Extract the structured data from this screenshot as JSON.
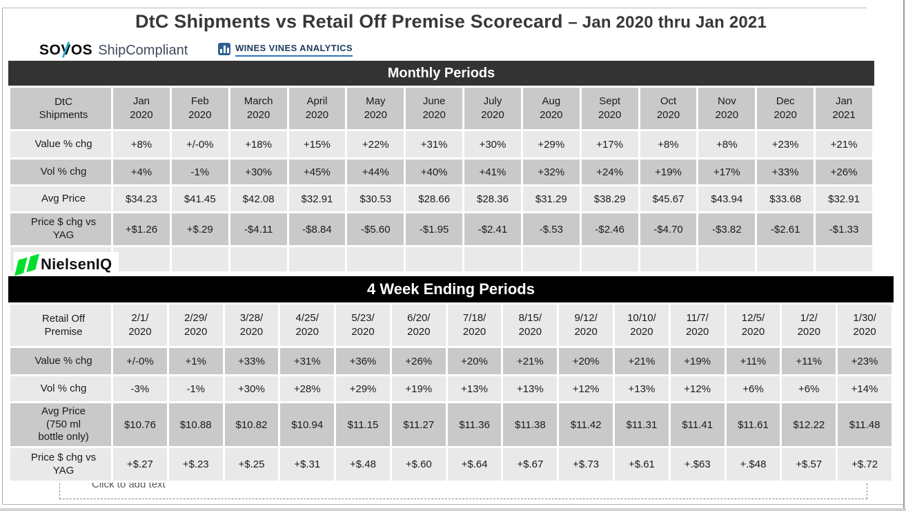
{
  "page": {
    "title_main": "DtC Shipments vs Retail Off Premise Scorecard",
    "title_range": "– Jan 2020 thru Jan 2021"
  },
  "logos": {
    "sovos": {
      "brand": "SOVOS",
      "product": "ShipCompliant",
      "accent": "#1fb3cb"
    },
    "wines_vines": {
      "text": "WINES VINES ANALYTICS",
      "color": "#1a3a5c",
      "icon_bg": "#2d5f91"
    },
    "nielsen": {
      "text": "NielsenIQ",
      "green": "#00df2e"
    }
  },
  "colors": {
    "cell_dark": "#c9c9c9",
    "cell_light": "#e9e9e9",
    "band1_bg": "#333333",
    "band2_bg": "#000000"
  },
  "sections": [
    {
      "band_label": "Monthly Periods",
      "header_shade": "dark",
      "table": {
        "corner_label": "DtC\nShipments",
        "columns": [
          "Jan\n2020",
          "Feb\n2020",
          "March\n2020",
          "April\n2020",
          "May\n2020",
          "June\n2020",
          "July\n2020",
          "Aug\n2020",
          "Sept\n2020",
          "Oct\n2020",
          "Nov\n2020",
          "Dec\n2020",
          "Jan\n2021"
        ],
        "rows": [
          {
            "label": "Value % chg",
            "values": [
              "+8%",
              "+/-0%",
              "+18%",
              "+15%",
              "+22%",
              "+31%",
              "+30%",
              "+29%",
              "+17%",
              "+8%",
              "+8%",
              "+23%",
              "+21%"
            ]
          },
          {
            "label": "Vol % chg",
            "values": [
              "+4%",
              "-1%",
              "+30%",
              "+45%",
              "+44%",
              "+40%",
              "+41%",
              "+32%",
              "+24%",
              "+19%",
              "+17%",
              "+33%",
              "+26%"
            ]
          },
          {
            "label": "Avg Price",
            "values": [
              "$34.23",
              "$41.45",
              "$42.08",
              "$32.91",
              "$30.53",
              "$28.66",
              "$28.36",
              "$31.29",
              "$38.29",
              "$45.67",
              "$43.94",
              "$33.68",
              "$32.91"
            ]
          },
          {
            "label": "Price $ chg vs\nYAG",
            "values": [
              "+$1.26",
              "+$.29",
              "-$4.11",
              "-$8.84",
              "-$5.60",
              "-$1.95",
              "-$2.41",
              "-$.53",
              "-$2.46",
              "-$4.70",
              "-$3.82",
              "-$2.61",
              "-$1.33"
            ]
          },
          {
            "label": "",
            "values": [
              "",
              "",
              "",
              "",
              "",
              "",
              "",
              "",
              "",
              "",
              "",
              "",
              ""
            ]
          }
        ]
      }
    },
    {
      "band_label": "4 Week Ending Periods",
      "header_shade": "light",
      "table": {
        "corner_label": "Retail Off\nPremise",
        "columns": [
          "2/1/\n2020",
          "2/29/\n2020",
          "3/28/\n2020",
          "4/25/\n2020",
          "5/23/\n2020",
          "6/20/\n2020",
          "7/18/\n2020",
          "8/15/\n2020",
          "9/12/\n2020",
          "10/10/\n2020",
          "11/7/\n2020",
          "12/5/\n2020",
          "1/2/\n2020",
          "1/30/\n2020"
        ],
        "rows": [
          {
            "label": "Value % chg",
            "values": [
              "+/-0%",
              "+1%",
              "+33%",
              "+31%",
              "+36%",
              "+26%",
              "+20%",
              "+21%",
              "+20%",
              "+21%",
              "+19%",
              "+11%",
              "+11%",
              "+23%"
            ]
          },
          {
            "label": "Vol % chg",
            "values": [
              "-3%",
              "-1%",
              "+30%",
              "+28%",
              "+29%",
              "+19%",
              "+13%",
              "+13%",
              "+12%",
              "+13%",
              "+12%",
              "+6%",
              "+6%",
              "+14%"
            ]
          },
          {
            "label": "Avg Price\n(750 ml\nbottle only)",
            "values": [
              "$10.76",
              "$10.88",
              "$10.82",
              "$10.94",
              "$11.15",
              "$11.27",
              "$11.36",
              "$11.38",
              "$11.42",
              "$11.31",
              "$11.41",
              "$11.61",
              "$12.22",
              "$11.48"
            ]
          },
          {
            "label": "Price $ chg vs\nYAG",
            "values": [
              "+$.27",
              "+$.23",
              "+$.25",
              "+$.31",
              "+$.48",
              "+$.60",
              "+$.64",
              "+$.67",
              "+$.73",
              "+$.61",
              "+.$63",
              "+.$48",
              "+$.57",
              "+$.72"
            ]
          }
        ]
      }
    }
  ],
  "placeholder": {
    "text": "Click to add text"
  }
}
